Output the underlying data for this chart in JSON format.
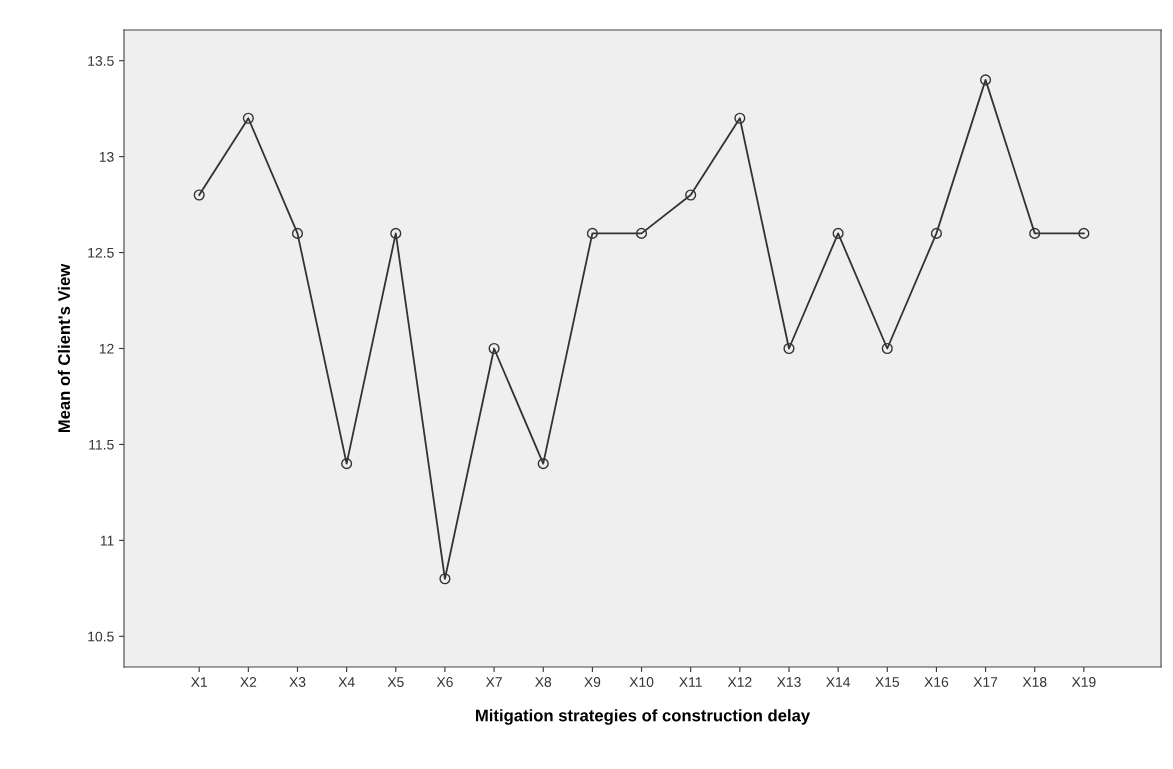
{
  "chart_data": {
    "type": "line",
    "xlabel": "Mitigation strategies of construction delay",
    "ylabel": "Mean of Client's View",
    "categories": [
      "X1",
      "X2",
      "X3",
      "X4",
      "X5",
      "X6",
      "X7",
      "X8",
      "X9",
      "X10",
      "X11",
      "X12",
      "X13",
      "X14",
      "X15",
      "X16",
      "X17",
      "X18",
      "X19"
    ],
    "series": [
      {
        "color": "#333333",
        "values": [
          12.8,
          13.2,
          12.6,
          11.4,
          12.6,
          10.8,
          12.0,
          11.4,
          12.6,
          12.6,
          12.8,
          13.2,
          12.0,
          12.6,
          12.0,
          12.6,
          13.4,
          12.6,
          12.6
        ]
      }
    ],
    "ylim": [
      10.34,
      13.66
    ],
    "yticks": [
      10.5,
      11,
      11.5,
      12,
      12.5,
      13,
      13.5
    ],
    "grid": false,
    "legend": false,
    "marker": "circle",
    "line_style": "solid"
  }
}
